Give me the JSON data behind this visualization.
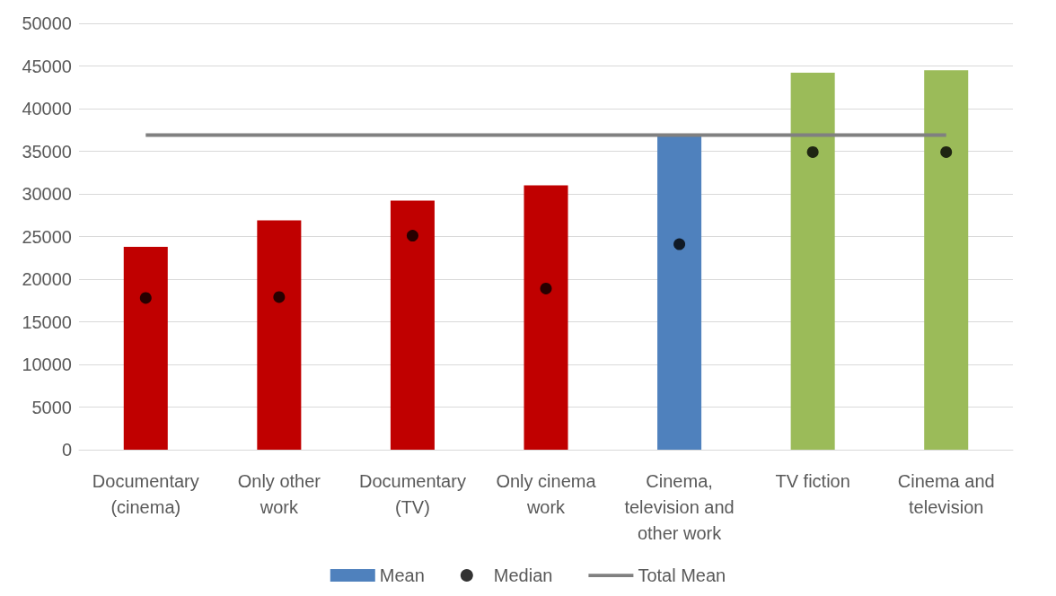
{
  "chart_data": {
    "type": "bar",
    "categories": [
      "Documentary\n(cinema)",
      "Only other\nwork",
      "Documentary\n(TV)",
      "Only cinema\nwork",
      "Cinema,\ntelevision and\nother work",
      "TV fiction",
      "Cinema and\ntelevision"
    ],
    "series": [
      {
        "name": "Mean",
        "color": "#4f81bd",
        "colors": [
          "#c00000",
          "#c00000",
          "#c00000",
          "#c00000",
          "#4f81bd",
          "#9bbb59",
          "#9bbb59"
        ],
        "values": [
          23800,
          26900,
          29200,
          31000,
          36900,
          44200,
          44500
        ]
      },
      {
        "name": "Median",
        "type": "scatter",
        "color": "#000000",
        "marker": "circle",
        "values": [
          17800,
          17900,
          25100,
          18900,
          24100,
          34900,
          34900
        ]
      },
      {
        "name": "Total Mean",
        "type": "line",
        "color": "#808080",
        "marker": "none",
        "values": [
          36900,
          36900,
          36900,
          36900,
          36900,
          36900,
          36900
        ]
      }
    ],
    "ylim": [
      0,
      50000
    ],
    "yticks": [
      0,
      5000,
      10000,
      15000,
      20000,
      25000,
      30000,
      35000,
      40000,
      45000,
      50000
    ],
    "grid": "y",
    "legend": "bottom"
  }
}
